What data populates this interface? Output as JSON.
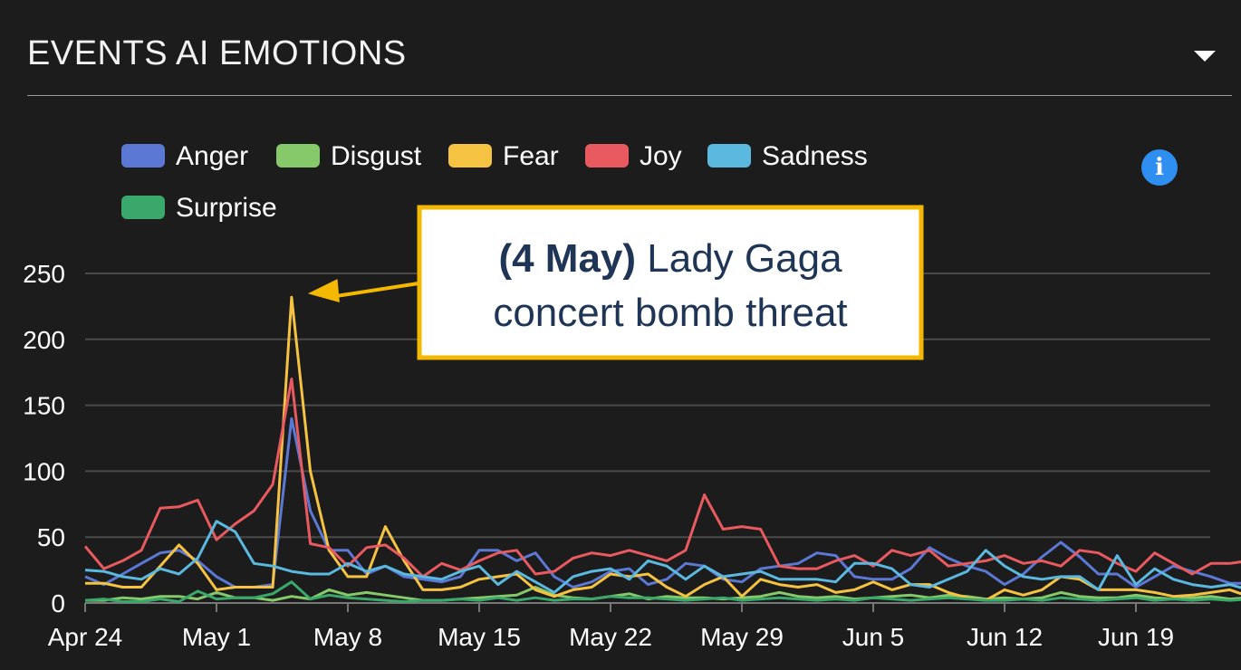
{
  "header": {
    "title": "EVENTS AI EMOTIONS",
    "menu_icon": "caret-down-icon",
    "info_icon": "info-icon",
    "info_symbol": "i"
  },
  "callout": {
    "bold": "(4 May)",
    "line1": "Lady Gaga",
    "line2": "concert bomb threat",
    "border_color": "#f5b800",
    "text_color": "#1f3556"
  },
  "chart_data": {
    "type": "line",
    "title": "",
    "xlabel": "",
    "ylabel": "",
    "ylim": [
      0,
      250
    ],
    "yticks": [
      "0",
      "50",
      "100",
      "150",
      "200",
      "250"
    ],
    "xticks": [
      "Apr 24",
      "May 1",
      "May 8",
      "May 15",
      "May 22",
      "May 29",
      "Jun 5",
      "Jun 12",
      "Jun 19"
    ],
    "x_start": "Apr 24",
    "grid": true,
    "legend": "top-left",
    "series": [
      {
        "name": "Anger",
        "color": "#5b79d4",
        "values": [
          20,
          14,
          22,
          30,
          38,
          40,
          32,
          20,
          12,
          12,
          14,
          140,
          70,
          40,
          40,
          22,
          28,
          20,
          18,
          16,
          20,
          40,
          40,
          32,
          38,
          20,
          12,
          16,
          24,
          26,
          14,
          18,
          30,
          28,
          18,
          16,
          26,
          28,
          30,
          38,
          36,
          20,
          18,
          18,
          26,
          42,
          34,
          28,
          24,
          14,
          22,
          35,
          46,
          35,
          22,
          22,
          12,
          20,
          28,
          24,
          20,
          15,
          15,
          12,
          10,
          10
        ]
      },
      {
        "name": "Disgust",
        "color": "#86c96a",
        "values": [
          2,
          2,
          4,
          3,
          5,
          5,
          3,
          8,
          4,
          4,
          2,
          5,
          3,
          10,
          6,
          8,
          6,
          4,
          2,
          2,
          3,
          4,
          5,
          6,
          12,
          6,
          4,
          3,
          5,
          7,
          3,
          5,
          4,
          4,
          3,
          4,
          5,
          8,
          5,
          4,
          5,
          3,
          4,
          5,
          6,
          4,
          6,
          5,
          3,
          4,
          3,
          4,
          8,
          5,
          4,
          4,
          6,
          4,
          3,
          4,
          5,
          3,
          4,
          3,
          5,
          4
        ]
      },
      {
        "name": "Fear",
        "color": "#f5c242",
        "values": [
          15,
          15,
          12,
          12,
          28,
          44,
          30,
          10,
          12,
          12,
          12,
          232,
          100,
          40,
          20,
          20,
          58,
          32,
          10,
          10,
          12,
          18,
          20,
          22,
          10,
          5,
          10,
          12,
          22,
          20,
          22,
          12,
          5,
          14,
          20,
          5,
          18,
          14,
          12,
          14,
          8,
          10,
          16,
          10,
          14,
          14,
          8,
          4,
          2,
          10,
          6,
          10,
          20,
          18,
          10,
          10,
          10,
          8,
          5,
          6,
          8,
          10,
          5,
          6,
          3,
          5
        ]
      },
      {
        "name": "Joy",
        "color": "#e85a5f",
        "values": [
          43,
          26,
          32,
          40,
          72,
          73,
          78,
          48,
          60,
          70,
          90,
          170,
          45,
          42,
          28,
          42,
          44,
          34,
          20,
          30,
          25,
          32,
          38,
          40,
          22,
          24,
          34,
          38,
          36,
          40,
          36,
          32,
          40,
          82,
          56,
          58,
          56,
          28,
          26,
          26,
          32,
          36,
          28,
          40,
          36,
          40,
          28,
          30,
          32,
          36,
          30,
          32,
          28,
          40,
          38,
          30,
          24,
          38,
          30,
          22,
          30,
          30,
          32,
          38,
          15,
          15
        ]
      },
      {
        "name": "Sadness",
        "color": "#5bb8de",
        "values": [
          25,
          24,
          20,
          18,
          26,
          22,
          34,
          62,
          54,
          30,
          28,
          24,
          22,
          22,
          30,
          24,
          28,
          22,
          20,
          18,
          24,
          28,
          14,
          24,
          16,
          8,
          20,
          24,
          26,
          18,
          32,
          28,
          18,
          28,
          20,
          22,
          24,
          18,
          18,
          18,
          16,
          30,
          30,
          26,
          14,
          12,
          18,
          24,
          40,
          28,
          20,
          18,
          20,
          20,
          10,
          36,
          14,
          26,
          18,
          14,
          12,
          14,
          10,
          8,
          7,
          8
        ]
      },
      {
        "name": "Surprise",
        "color": "#3aa86a",
        "values": [
          2,
          3,
          1,
          1,
          3,
          1,
          9,
          3,
          4,
          4,
          7,
          16,
          3,
          6,
          4,
          3,
          2,
          1,
          2,
          2,
          3,
          2,
          4,
          2,
          4,
          2,
          3,
          3,
          5,
          4,
          4,
          3,
          2,
          3,
          4,
          2,
          3,
          4,
          3,
          2,
          3,
          2,
          4,
          3,
          2,
          3,
          4,
          3,
          2,
          2,
          3,
          2,
          4,
          3,
          2,
          3,
          4,
          2,
          3,
          2,
          3,
          2,
          3,
          2,
          4,
          3
        ]
      }
    ]
  }
}
